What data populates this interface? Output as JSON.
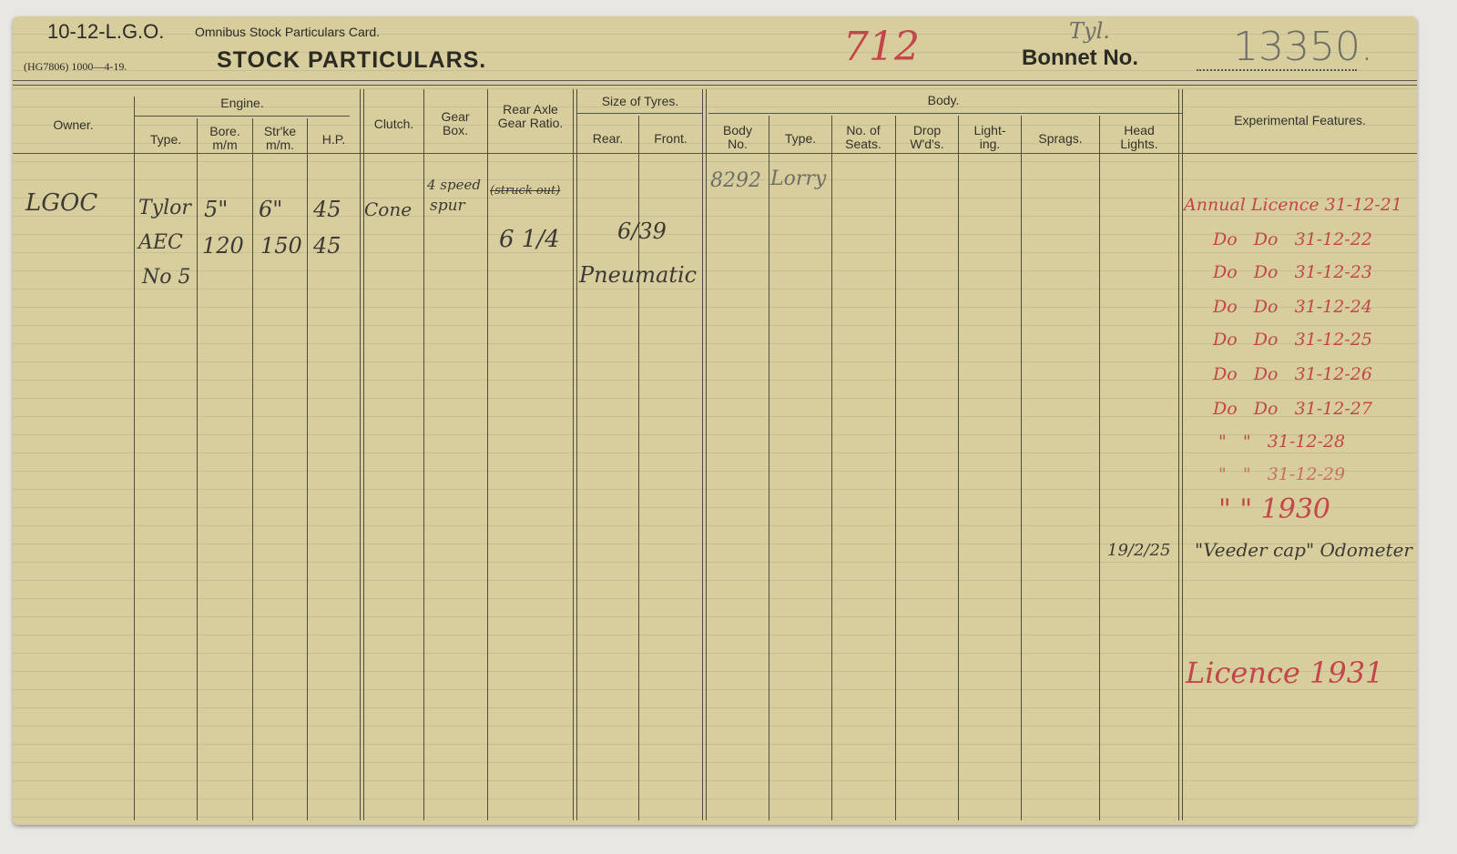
{
  "card": {
    "form_code": "10-12-L.G.O.",
    "subtitle": "Omnibus Stock Particulars Card.",
    "print_ref": "(HG7806) 1000—4-19.",
    "title": "STOCK PARTICULARS.",
    "fleet_no": "712",
    "bonnet_label": "Bonnet No.",
    "bonnet_annotation": "Tyl.",
    "bonnet_no": "13350."
  },
  "headers": {
    "owner": "Owner.",
    "engine": "Engine.",
    "engine_type": "Type.",
    "bore": "Bore. m/m",
    "stroke": "Str'ke m/m.",
    "hp": "H.P.",
    "clutch": "Clutch.",
    "gear_box": "Gear Box.",
    "rear_axle": "Rear Axle Gear Ratio.",
    "tyres": "Size of Tyres.",
    "tyre_rear": "Rear.",
    "tyre_front": "Front.",
    "body": "Body.",
    "body_no": "Body No.",
    "body_type": "Type.",
    "seats": "No. of Seats.",
    "drop": "Drop W'd's.",
    "lighting": "Light- ing.",
    "sprags": "Sprags.",
    "head_lights": "Head Lights.",
    "experimental": "Experimental Features."
  },
  "entries": {
    "owner": "LGOC",
    "engine_type": [
      "Tylor",
      "AEC",
      "No 5"
    ],
    "bore": [
      "5\"",
      "120"
    ],
    "stroke": [
      "6\"",
      "150"
    ],
    "hp": [
      "45",
      "45"
    ],
    "clutch": "Cone",
    "gear_box": [
      "4 speed",
      "spur"
    ],
    "rear_axle": [
      "(struck out)",
      "6 1/4"
    ],
    "tyres": [
      "6/39",
      "Pneumatic"
    ],
    "body_no": "8292",
    "body_type": "Lorry",
    "head_lights_date": "19/2/25",
    "experimental": [
      "Annual Licence 31-12-21",
      "Do   Do   31-12-22",
      "Do   Do   31-12-23",
      "Do   Do   31-12-24",
      "Do   Do   31-12-25",
      "Do   Do   31-12-26",
      "Do   Do   31-12-27",
      "\"   \"   31-12-28",
      "\"   \"   31-12-29",
      "\" \" 1930",
      "\"Veeder cap\" Odometer",
      "Licence 1931"
    ]
  },
  "colors": {
    "card": "#d8ce9d",
    "red_ink": "#c2464a",
    "black_ink": "#3d3a35"
  }
}
